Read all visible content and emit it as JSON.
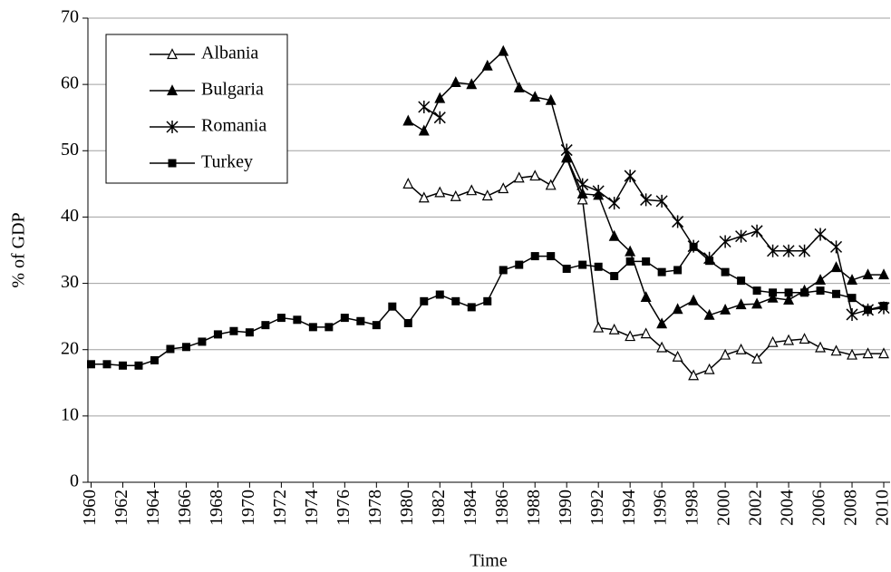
{
  "chart_data": {
    "type": "line",
    "y_label": "% of GDP",
    "x_label": "Time",
    "x": [
      1960,
      1961,
      1962,
      1963,
      1964,
      1965,
      1966,
      1967,
      1968,
      1969,
      1970,
      1971,
      1972,
      1973,
      1974,
      1975,
      1976,
      1977,
      1978,
      1979,
      1980,
      1981,
      1982,
      1983,
      1984,
      1985,
      1986,
      1987,
      1988,
      1989,
      1990,
      1991,
      1992,
      1993,
      1994,
      1995,
      1996,
      1997,
      1998,
      1999,
      2000,
      2001,
      2002,
      2003,
      2004,
      2005,
      2006,
      2007,
      2008,
      2009,
      2010
    ],
    "series": [
      {
        "name": "Albania",
        "color": "#000000",
        "marker": "triangle-open",
        "values": [
          null,
          null,
          null,
          null,
          null,
          null,
          null,
          null,
          null,
          null,
          null,
          null,
          null,
          null,
          null,
          null,
          null,
          null,
          null,
          null,
          45.0,
          42.9,
          43.7,
          43.1,
          44.0,
          43.2,
          44.3,
          45.9,
          46.2,
          44.8,
          48.9,
          42.6,
          23.3,
          23.0,
          22.0,
          22.4,
          20.3,
          18.9,
          16.1,
          17.0,
          19.2,
          20.0,
          18.6,
          21.1,
          21.4,
          21.6,
          20.3,
          19.8,
          19.2,
          19.4,
          19.4
        ]
      },
      {
        "name": "Bulgaria",
        "color": "#000000",
        "marker": "triangle",
        "values": [
          null,
          null,
          null,
          null,
          null,
          null,
          null,
          null,
          null,
          null,
          null,
          null,
          null,
          null,
          null,
          null,
          null,
          null,
          null,
          null,
          54.5,
          53.0,
          57.9,
          60.3,
          60.0,
          62.8,
          65.0,
          59.5,
          58.1,
          57.6,
          49.0,
          43.5,
          43.3,
          37.1,
          34.8,
          27.9,
          23.9,
          26.1,
          27.4,
          25.2,
          26.0,
          26.8,
          26.9,
          27.8,
          27.5,
          28.9,
          30.5,
          32.4,
          30.5,
          31.3,
          31.3
        ]
      },
      {
        "name": "Romania",
        "color": "#000000",
        "marker": "asterisk",
        "values": [
          null,
          null,
          null,
          null,
          null,
          null,
          null,
          null,
          null,
          null,
          null,
          null,
          null,
          null,
          null,
          null,
          null,
          null,
          null,
          null,
          null,
          56.6,
          55.0,
          null,
          null,
          null,
          null,
          null,
          null,
          null,
          50.1,
          44.9,
          43.9,
          42.1,
          46.2,
          42.6,
          42.4,
          39.3,
          35.6,
          33.8,
          36.3,
          37.1,
          37.9,
          34.9,
          34.9,
          34.9,
          37.4,
          35.5,
          25.3,
          26.0,
          26.3
        ]
      },
      {
        "name": "Turkey",
        "color": "#000000",
        "marker": "square",
        "values": [
          17.8,
          17.8,
          17.6,
          17.6,
          18.4,
          20.1,
          20.4,
          21.2,
          22.3,
          22.8,
          22.6,
          23.7,
          24.8,
          24.5,
          23.4,
          23.4,
          24.8,
          24.3,
          23.7,
          26.5,
          24.0,
          27.3,
          28.3,
          27.3,
          26.4,
          27.3,
          32.0,
          32.8,
          34.1,
          34.1,
          32.2,
          32.8,
          32.5,
          31.1,
          33.3,
          33.3,
          31.7,
          32.0,
          35.5,
          33.4,
          31.7,
          30.4,
          28.9,
          28.6,
          28.6,
          28.6,
          28.9,
          28.4,
          27.8,
          26.0,
          26.6
        ]
      }
    ],
    "xlim": [
      1959.8,
      2010.4
    ],
    "xticks": [
      1960,
      1962,
      1964,
      1966,
      1968,
      1970,
      1972,
      1974,
      1976,
      1978,
      1980,
      1982,
      1984,
      1986,
      1988,
      1990,
      1992,
      1994,
      1996,
      1998,
      2000,
      2002,
      2004,
      2006,
      2008,
      2010
    ],
    "ylim": [
      0,
      70
    ],
    "yticks": [
      0,
      10,
      20,
      30,
      40,
      50,
      60,
      70
    ],
    "grid": true,
    "legend": "upper-left"
  }
}
